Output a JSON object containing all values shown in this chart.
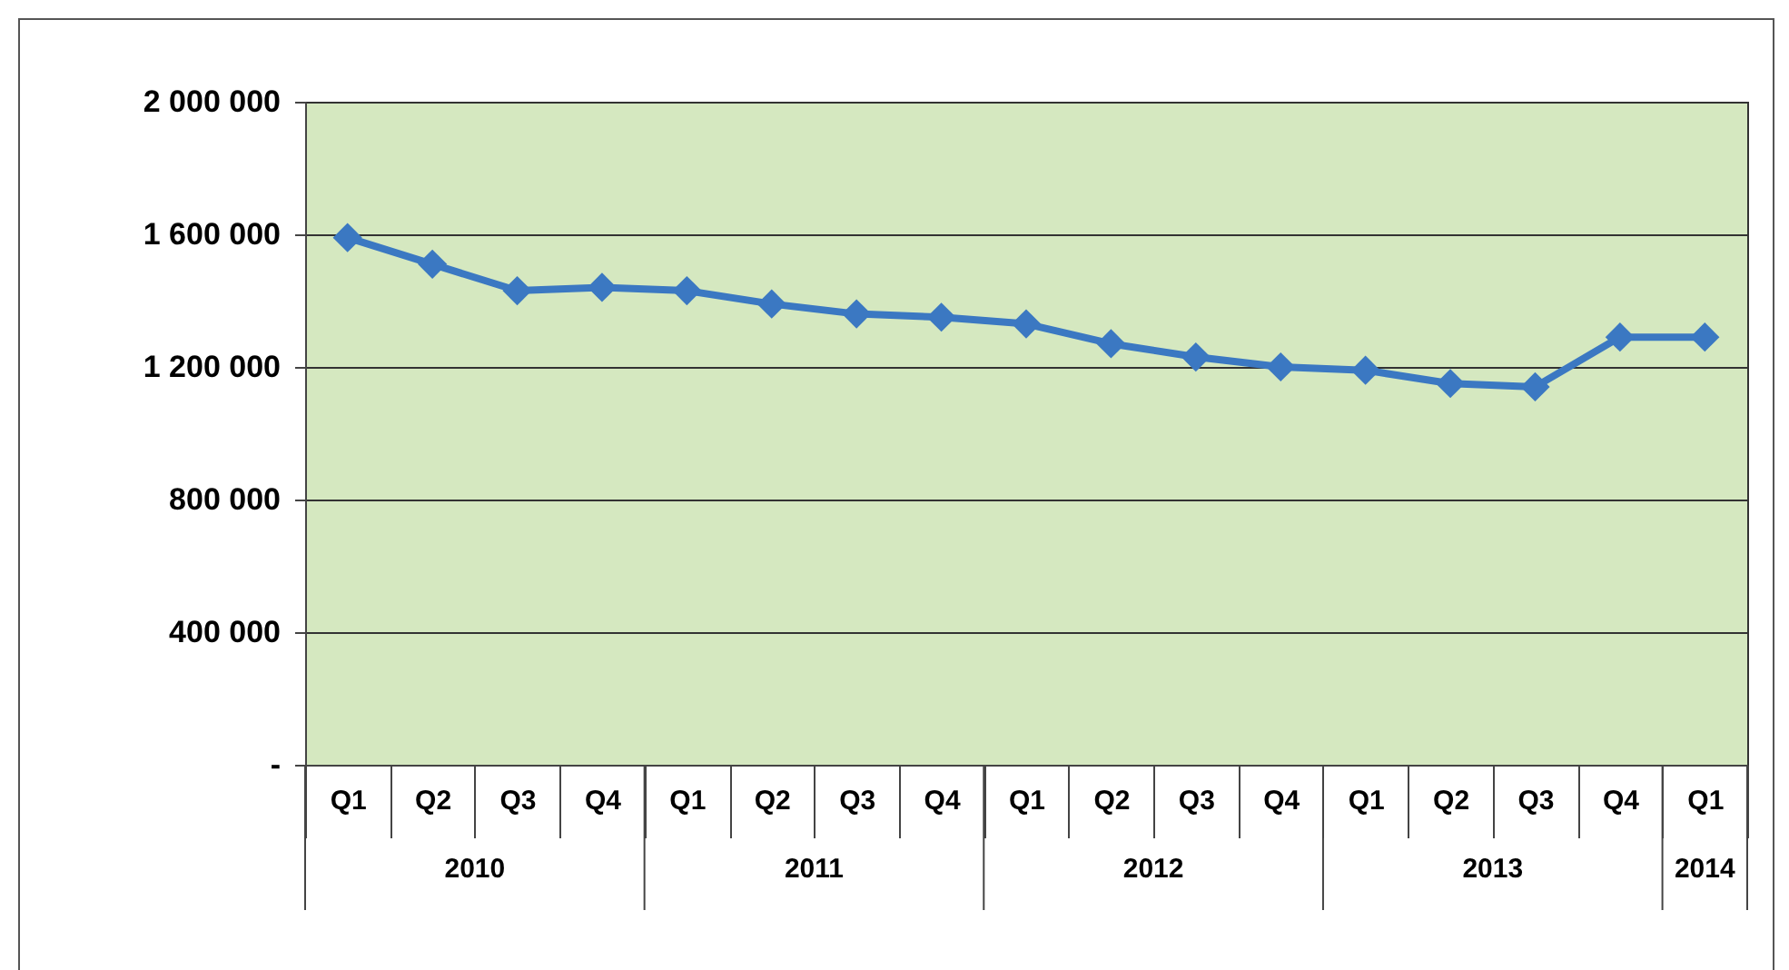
{
  "chart_data": {
    "type": "line",
    "categories": [
      "Q1",
      "Q2",
      "Q3",
      "Q4",
      "Q1",
      "Q2",
      "Q3",
      "Q4",
      "Q1",
      "Q2",
      "Q3",
      "Q4",
      "Q1",
      "Q2",
      "Q3",
      "Q4",
      "Q1"
    ],
    "series": [
      {
        "color": "#3b78c2",
        "values": [
          1590000,
          1510000,
          1430000,
          1440000,
          1430000,
          1390000,
          1360000,
          1350000,
          1330000,
          1270000,
          1230000,
          1200000,
          1190000,
          1150000,
          1140000,
          1290000,
          1290000
        ]
      }
    ],
    "annotations": [
      "2010",
      "2011",
      "2012",
      "2013",
      "2014"
    ],
    "ylim": [
      0,
      2000000
    ],
    "yticks": [
      {
        "value": 0,
        "label": "-"
      },
      {
        "value": 400000,
        "label": "400 000"
      },
      {
        "value": 800000,
        "label": "800 000"
      },
      {
        "value": 1200000,
        "label": "1 200 000"
      },
      {
        "value": 1600000,
        "label": "1 600 000"
      },
      {
        "value": 2000000,
        "label": "2 000 000"
      }
    ],
    "grid": "y",
    "marker": "diamond",
    "line_style": "solid"
  }
}
